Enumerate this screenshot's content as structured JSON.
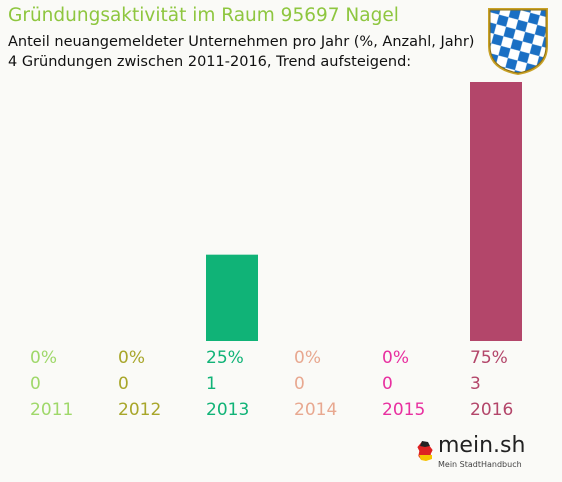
{
  "header": {
    "title": "Gründungsaktivität im Raum 95697 Nagel",
    "subtitle_line1": "Anteil neuangemeldeter Unternehmen pro Jahr (%, Anzahl, Jahr)",
    "subtitle_line2": "4 Gründungen zwischen 2011-2016, Trend aufsteigend:"
  },
  "crest": {
    "icon": "bavaria-coat-of-arms-icon",
    "colors": [
      "#1a6fc4",
      "#ffffff",
      "#c9a227"
    ]
  },
  "logo": {
    "main": "mein.sh",
    "sub": "Mein StadtHandbuch"
  },
  "colors": {
    "title": "#8ec63f"
  },
  "chart_data": {
    "type": "bar",
    "categories": [
      "2011",
      "2012",
      "2013",
      "2014",
      "2015",
      "2016"
    ],
    "values": [
      0,
      0,
      1,
      0,
      0,
      3
    ],
    "percent_labels": [
      "0%",
      "0%",
      "25%",
      "0%",
      "0%",
      "75%"
    ],
    "count_labels": [
      "0",
      "0",
      "1",
      "0",
      "0",
      "3"
    ],
    "colors": [
      "#9fd86a",
      "#a8a62a",
      "#10b377",
      "#e8a890",
      "#e830a0",
      "#b3466a"
    ],
    "ylim": [
      0,
      3
    ],
    "grid": false,
    "legend": "none"
  }
}
